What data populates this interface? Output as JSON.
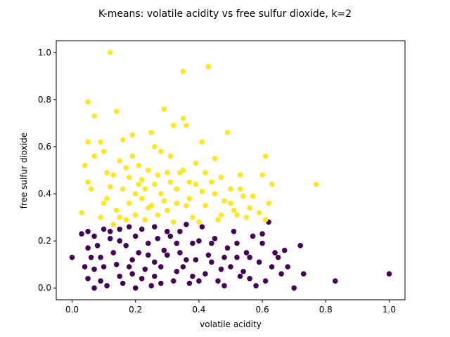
{
  "chart_data": {
    "type": "scatter",
    "title": "K-means: volatile acidity vs free sulfur dioxide, k=2",
    "xlabel": "volatile acidity",
    "ylabel": "free sulfur dioxide",
    "xlim": [
      -0.05,
      1.05
    ],
    "ylim": [
      -0.05,
      1.05
    ],
    "xticks": [
      0.0,
      0.2,
      0.4,
      0.6,
      0.8,
      1.0
    ],
    "yticks": [
      0.0,
      0.2,
      0.4,
      0.6,
      0.8,
      1.0
    ],
    "xtick_labels": [
      "0.0",
      "0.2",
      "0.4",
      "0.6",
      "0.8",
      "1.0"
    ],
    "ytick_labels": [
      "0.0",
      "0.2",
      "0.4",
      "0.6",
      "0.8",
      "1.0"
    ],
    "grid": false,
    "legend": "none",
    "series": [
      {
        "color": "#440154",
        "points": [
          [
            0.0,
            0.13
          ],
          [
            0.03,
            0.23
          ],
          [
            0.05,
            0.24
          ],
          [
            0.04,
            0.09
          ],
          [
            0.05,
            0.04
          ],
          [
            0.07,
            0.08
          ],
          [
            0.06,
            0.13
          ],
          [
            0.08,
            0.18
          ],
          [
            0.07,
            0.22
          ],
          [
            0.09,
            0.03
          ],
          [
            0.07,
            0.0
          ],
          [
            0.1,
            0.09
          ],
          [
            0.1,
            0.25
          ],
          [
            0.12,
            0.21
          ],
          [
            0.13,
            0.15
          ],
          [
            0.15,
            0.05
          ],
          [
            0.15,
            0.25
          ],
          [
            0.17,
            0.18
          ],
          [
            0.19,
            0.12
          ],
          [
            0.2,
            0.0
          ],
          [
            0.2,
            0.22
          ],
          [
            0.22,
            0.04
          ],
          [
            0.24,
            0.19
          ],
          [
            0.26,
            0.11
          ],
          [
            0.26,
            0.26
          ],
          [
            0.28,
            0.02
          ],
          [
            0.29,
            0.16
          ],
          [
            0.31,
            0.22
          ],
          [
            0.33,
            0.07
          ],
          [
            0.34,
            0.24
          ],
          [
            0.36,
            0.12
          ],
          [
            0.38,
            0.19
          ],
          [
            0.4,
            0.03
          ],
          [
            0.41,
            0.26
          ],
          [
            0.43,
            0.14
          ],
          [
            0.45,
            0.21
          ],
          [
            0.47,
            0.08
          ],
          [
            0.49,
            0.17
          ],
          [
            0.51,
            0.24
          ],
          [
            0.53,
            0.05
          ],
          [
            0.55,
            0.15
          ],
          [
            0.57,
            0.22
          ],
          [
            0.59,
            0.11
          ],
          [
            0.61,
            0.03
          ],
          [
            0.62,
            0.28
          ],
          [
            0.64,
            0.15
          ],
          [
            0.66,
            0.06
          ],
          [
            0.68,
            0.09
          ],
          [
            0.7,
            0.0
          ],
          [
            0.72,
            0.18
          ],
          [
            0.73,
            0.06
          ],
          [
            0.83,
            0.03
          ],
          [
            1.0,
            0.06
          ],
          [
            0.05,
            0.17
          ],
          [
            0.09,
            0.13
          ],
          [
            0.11,
            0.01
          ],
          [
            0.12,
            0.24
          ],
          [
            0.14,
            0.1
          ],
          [
            0.16,
            0.02
          ],
          [
            0.18,
            0.26
          ],
          [
            0.19,
            0.06
          ],
          [
            0.21,
            0.15
          ],
          [
            0.23,
            0.08
          ],
          [
            0.25,
            0.01
          ],
          [
            0.27,
            0.21
          ],
          [
            0.28,
            0.09
          ],
          [
            0.3,
            0.14
          ],
          [
            0.32,
            0.03
          ],
          [
            0.33,
            0.19
          ],
          [
            0.35,
            0.09
          ],
          [
            0.36,
            0.27
          ],
          [
            0.38,
            0.05
          ],
          [
            0.39,
            0.12
          ],
          [
            0.42,
            0.06
          ],
          [
            0.44,
            0.19
          ],
          [
            0.46,
            0.03
          ],
          [
            0.48,
            0.13
          ],
          [
            0.5,
            0.09
          ],
          [
            0.52,
            0.19
          ],
          [
            0.54,
            0.07
          ],
          [
            0.56,
            0.13
          ],
          [
            0.58,
            0.01
          ],
          [
            0.6,
            0.19
          ],
          [
            0.63,
            0.09
          ],
          [
            0.65,
            0.13
          ],
          [
            0.67,
            0.16
          ],
          [
            0.15,
            0.2
          ],
          [
            0.22,
            0.25
          ],
          [
            0.26,
            0.05
          ],
          [
            0.3,
            0.24
          ],
          [
            0.34,
            0.15
          ],
          [
            0.37,
            0.02
          ],
          [
            0.4,
            0.2
          ],
          [
            0.44,
            0.11
          ],
          [
            0.48,
            0.01
          ],
          [
            0.52,
            0.13
          ],
          [
            0.56,
            0.04
          ],
          [
            0.6,
            0.23
          ],
          [
            0.18,
            0.09
          ],
          [
            0.24,
            0.14
          ]
        ]
      },
      {
        "color": "#fde725",
        "points": [
          [
            0.03,
            0.32
          ],
          [
            0.05,
            0.45
          ],
          [
            0.04,
            0.52
          ],
          [
            0.05,
            0.62
          ],
          [
            0.05,
            0.79
          ],
          [
            0.06,
            0.42
          ],
          [
            0.07,
            0.56
          ],
          [
            0.07,
            0.73
          ],
          [
            0.09,
            0.3
          ],
          [
            0.09,
            0.62
          ],
          [
            0.1,
            0.58
          ],
          [
            0.1,
            0.36
          ],
          [
            0.11,
            0.38
          ],
          [
            0.11,
            0.49
          ],
          [
            0.12,
            1.0
          ],
          [
            0.13,
            0.48
          ],
          [
            0.13,
            0.27
          ],
          [
            0.14,
            0.33
          ],
          [
            0.14,
            0.75
          ],
          [
            0.15,
            0.54
          ],
          [
            0.16,
            0.42
          ],
          [
            0.16,
            0.63
          ],
          [
            0.17,
            0.29
          ],
          [
            0.18,
            0.47
          ],
          [
            0.18,
            0.36
          ],
          [
            0.19,
            0.65
          ],
          [
            0.19,
            0.56
          ],
          [
            0.2,
            0.31
          ],
          [
            0.21,
            0.44
          ],
          [
            0.21,
            0.52
          ],
          [
            0.22,
            0.38
          ],
          [
            0.23,
            0.29
          ],
          [
            0.24,
            0.5
          ],
          [
            0.25,
            0.66
          ],
          [
            0.25,
            0.35
          ],
          [
            0.26,
            0.44
          ],
          [
            0.27,
            0.31
          ],
          [
            0.28,
            0.58
          ],
          [
            0.28,
            0.4
          ],
          [
            0.29,
            0.76
          ],
          [
            0.3,
            0.49
          ],
          [
            0.3,
            0.33
          ],
          [
            0.31,
            0.56
          ],
          [
            0.32,
            0.28
          ],
          [
            0.32,
            0.69
          ],
          [
            0.33,
            0.42
          ],
          [
            0.34,
            0.49
          ],
          [
            0.35,
            0.92
          ],
          [
            0.35,
            0.72
          ],
          [
            0.36,
            0.69
          ],
          [
            0.36,
            0.35
          ],
          [
            0.37,
            0.45
          ],
          [
            0.38,
            0.3
          ],
          [
            0.39,
            0.53
          ],
          [
            0.4,
            0.28
          ],
          [
            0.41,
            0.62
          ],
          [
            0.41,
            0.41
          ],
          [
            0.42,
            0.35
          ],
          [
            0.43,
            0.94
          ],
          [
            0.44,
            0.45
          ],
          [
            0.45,
            0.55
          ],
          [
            0.46,
            0.29
          ],
          [
            0.47,
            0.47
          ],
          [
            0.48,
            0.37
          ],
          [
            0.49,
            0.66
          ],
          [
            0.5,
            0.42
          ],
          [
            0.51,
            0.33
          ],
          [
            0.52,
            0.31
          ],
          [
            0.53,
            0.48
          ],
          [
            0.54,
            0.39
          ],
          [
            0.55,
            0.3
          ],
          [
            0.57,
            0.39
          ],
          [
            0.59,
            0.32
          ],
          [
            0.6,
            0.48
          ],
          [
            0.61,
            0.29
          ],
          [
            0.61,
            0.56
          ],
          [
            0.62,
            0.36
          ],
          [
            0.63,
            0.44
          ],
          [
            0.77,
            0.44
          ],
          [
            0.12,
            0.43
          ],
          [
            0.15,
            0.3
          ],
          [
            0.17,
            0.51
          ],
          [
            0.2,
            0.4
          ],
          [
            0.22,
            0.46
          ],
          [
            0.24,
            0.34
          ],
          [
            0.26,
            0.6
          ],
          [
            0.29,
            0.37
          ],
          [
            0.31,
            0.45
          ],
          [
            0.33,
            0.36
          ],
          [
            0.35,
            0.5
          ],
          [
            0.37,
            0.38
          ],
          [
            0.39,
            0.44
          ],
          [
            0.42,
            0.49
          ],
          [
            0.45,
            0.4
          ],
          [
            0.47,
            0.31
          ],
          [
            0.5,
            0.36
          ],
          [
            0.53,
            0.42
          ],
          [
            0.56,
            0.34
          ],
          [
            0.23,
            0.42
          ],
          [
            0.27,
            0.48
          ]
        ]
      }
    ]
  }
}
